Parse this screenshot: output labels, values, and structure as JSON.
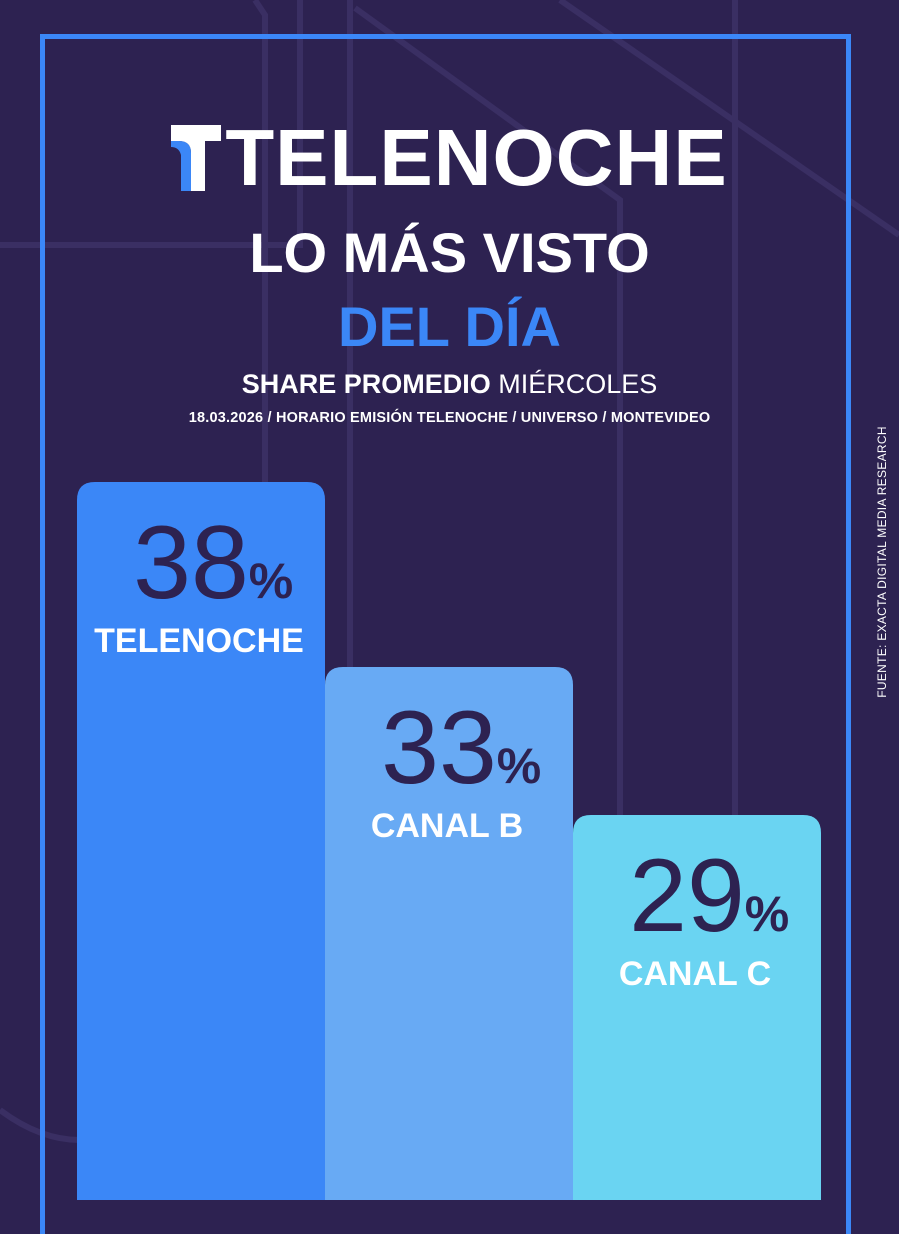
{
  "brand": {
    "name": "TELENOCHE",
    "accent": "#3b87f7",
    "background": "#2d2251"
  },
  "title": {
    "line1": "LO MÁS VISTO",
    "line2": "DEL DÍA"
  },
  "subtitle": {
    "strong": "SHARE PROMEDIO",
    "light": "MIÉRCOLES"
  },
  "details": "18.03.2026 / HORARIO EMISIÓN TELENOCHE / UNIVERSO / MONTEVIDEO",
  "source": "FUENTE: EXACTA DIGITAL MEDIA RESEARCH",
  "chart_data": {
    "type": "bar",
    "categories": [
      "TELENOCHE",
      "CANAL B",
      "CANAL C"
    ],
    "values": [
      38,
      33,
      29
    ],
    "value_labels": [
      "38",
      "33",
      "29"
    ],
    "unit": "%",
    "colors": [
      "#3b87f7",
      "#68aaf4",
      "#6ad4f2"
    ],
    "value_color": "#2d2251",
    "label_color": "#ffffff"
  }
}
